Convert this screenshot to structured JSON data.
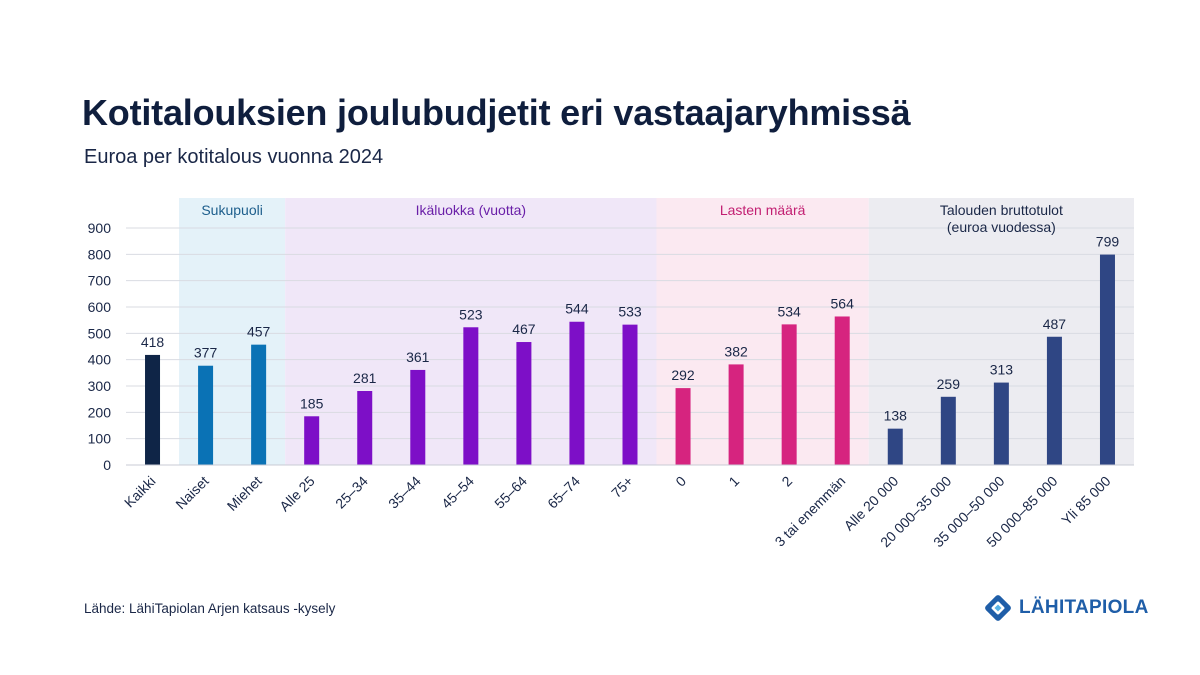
{
  "title": "Kotitalouksien joulubudjetit eri vastaajaryhmissä",
  "subtitle": "Euroa per kotitalous vuonna 2024",
  "source": "Lähde: LähiTapiolan Arjen katsaus -kysely",
  "brand": {
    "name": "LÄHITAPIOLA",
    "color": "#1f5ea8",
    "icon": "lahitapiola-logo-icon"
  },
  "chart_data": {
    "type": "bar",
    "ylim": [
      0,
      900
    ],
    "yticks": [
      0,
      100,
      200,
      300,
      400,
      500,
      600,
      700,
      800,
      900
    ],
    "grid": true,
    "categories": [
      "Kaikki",
      "Naiset",
      "Miehet",
      "Alle 25",
      "25–34",
      "35–44",
      "45–54",
      "55–64",
      "65–74",
      "75+",
      "0",
      "1",
      "2",
      "3 tai enemmän",
      "Alle 20 000",
      "20 000–35 000",
      "35 000–50 000",
      "50 000–85 000",
      "Yli 85 000"
    ],
    "values": [
      418,
      377,
      457,
      185,
      281,
      361,
      523,
      467,
      544,
      533,
      292,
      382,
      534,
      564,
      138,
      259,
      313,
      487,
      799
    ],
    "groups": [
      {
        "label": "",
        "start": 0,
        "end": 0,
        "bar_color": "#0f2547",
        "band_color": ""
      },
      {
        "label": "Sukupuoli",
        "start": 1,
        "end": 2,
        "bar_color": "#0a72b5",
        "band_color": "#e4f2f9",
        "label_color": "#1d5e8c"
      },
      {
        "label": "Ikäluokka (vuotta)",
        "start": 3,
        "end": 9,
        "bar_color": "#7d0fc7",
        "band_color": "#f0e7f8",
        "label_color": "#6a1fa8"
      },
      {
        "label": "Lasten määrä",
        "start": 10,
        "end": 13,
        "bar_color": "#d6247f",
        "band_color": "#fbe9f1",
        "label_color": "#c21f72"
      },
      {
        "label": "Talouden bruttotulot",
        "label2": "(euroa vuodessa)",
        "start": 14,
        "end": 18,
        "bar_color": "#2f4684",
        "band_color": "#ececf1",
        "label_color": "#1a2747"
      }
    ]
  }
}
